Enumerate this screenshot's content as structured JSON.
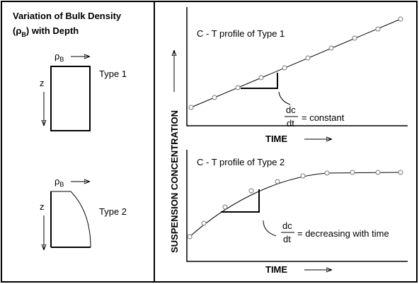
{
  "left": {
    "title_line1": "Variation of Bulk Density",
    "title_open": "(ρ",
    "title_sub": "B",
    "title_close": ") with Depth",
    "type1": {
      "rho": "ρ",
      "rho_sub": "B",
      "depth": "z",
      "label": "Type 1"
    },
    "type2": {
      "rho": "ρ",
      "rho_sub": "B",
      "depth": "z",
      "label": "Type 2"
    }
  },
  "right": {
    "y_label": "SUSPENSION CONCENTRATION",
    "panel1": {
      "title": "C - T profile of Type 1",
      "dc": "dc",
      "dt": "dt",
      "rate": "= constant",
      "x_label": "TIME"
    },
    "panel2": {
      "title": "C - T profile of Type 2",
      "dc": "dc",
      "dt": "dt",
      "rate": "= decreasing with time",
      "x_label": "TIME"
    }
  }
}
